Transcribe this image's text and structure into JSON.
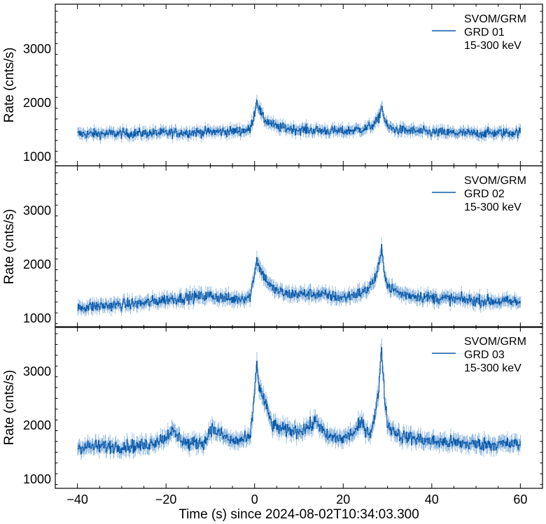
{
  "chart_data": {
    "type": "line",
    "xlabel": "Time (s) since 2024-08-02T10:34:03.300",
    "ylabel": "Rate (cnts/s)",
    "xlim": [
      -45,
      65
    ],
    "ylim": [
      830,
      3830
    ],
    "xticks": [
      -40,
      -20,
      0,
      20,
      40,
      60
    ],
    "yticks": [
      1000,
      2000,
      3000
    ],
    "grid": false,
    "legend_position": "top-right",
    "line_color": "#0b5aa8",
    "panels": [
      {
        "legend": [
          "SVOM/GRM",
          "GRD 01",
          "15-300 keV"
        ],
        "baseline": 1450,
        "noise": 85,
        "x": [
          -40,
          -20,
          -5,
          -1,
          0,
          0.5,
          1,
          2,
          5,
          10,
          20,
          25,
          27,
          28,
          28.7,
          29.3,
          30,
          32,
          40,
          50,
          60
        ],
        "y": [
          1420,
          1440,
          1470,
          1500,
          1820,
          2050,
          1900,
          1700,
          1550,
          1500,
          1470,
          1520,
          1600,
          1700,
          1950,
          1700,
          1550,
          1500,
          1450,
          1430,
          1450
        ]
      },
      {
        "legend": [
          "SVOM/GRM",
          "GRD 02",
          "15-300 keV"
        ],
        "baseline": 1280,
        "noise": 100,
        "x": [
          -40,
          -25,
          -20,
          -10,
          -5,
          -1,
          0,
          0.5,
          1,
          2,
          4,
          7,
          10,
          14,
          20,
          25,
          27,
          28,
          28.7,
          29.3,
          30,
          33,
          40,
          50,
          60
        ],
        "y": [
          1200,
          1280,
          1350,
          1420,
          1350,
          1400,
          1850,
          2100,
          1950,
          1800,
          1550,
          1450,
          1450,
          1450,
          1380,
          1500,
          1700,
          1950,
          2250,
          1900,
          1600,
          1450,
          1380,
          1330,
          1300
        ]
      },
      {
        "legend": [
          "SVOM/GRM",
          "GRD 03",
          "15-300 keV"
        ],
        "baseline": 1650,
        "noise": 120,
        "x": [
          -40,
          -25,
          -20,
          -19,
          -15,
          -11,
          -10,
          -5,
          -1,
          0,
          0.5,
          1,
          2,
          4,
          7,
          10,
          13,
          14,
          16,
          20,
          23,
          24,
          26,
          27,
          28,
          28.6,
          29.2,
          30,
          33,
          40,
          50,
          60
        ],
        "y": [
          1600,
          1620,
          1780,
          1900,
          1650,
          1700,
          1950,
          1700,
          1750,
          2600,
          3200,
          2700,
          2500,
          2000,
          1900,
          1900,
          2000,
          2100,
          1800,
          1750,
          1900,
          2050,
          1850,
          2100,
          2600,
          3500,
          2700,
          2000,
          1800,
          1700,
          1650,
          1650
        ]
      }
    ]
  }
}
